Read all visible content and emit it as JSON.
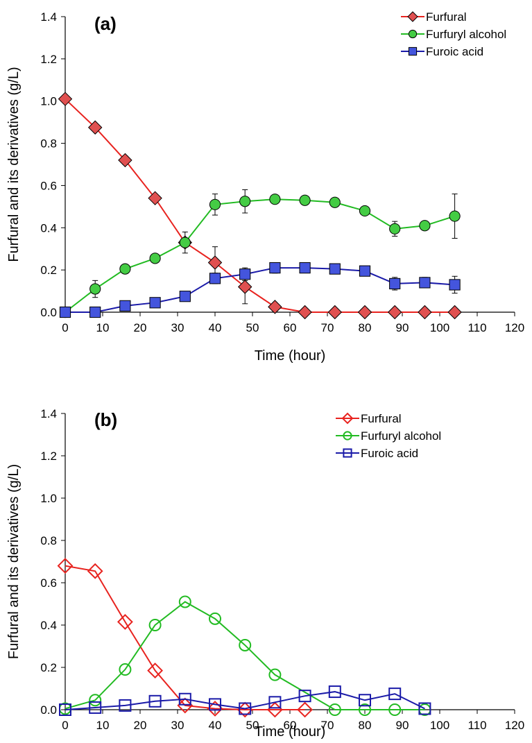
{
  "chart_data": [
    {
      "type": "line",
      "panel_label": "(a)",
      "xlabel": "Time (hour)",
      "ylabel": "Furfural and its derivatives (g/L)",
      "xlim": [
        0,
        120
      ],
      "ylim": [
        0,
        1.4
      ],
      "x_ticks": [
        "0",
        "10",
        "20",
        "30",
        "40",
        "50",
        "60",
        "70",
        "80",
        "90",
        "100",
        "110",
        "120"
      ],
      "y_ticks": [
        "0.0",
        "0.2",
        "0.4",
        "0.6",
        "0.8",
        "1.0",
        "1.2",
        "1.4"
      ],
      "grid": false,
      "legend_position": "top-right",
      "marker_fill": "filled",
      "series": [
        {
          "name": "Furfural",
          "color": "#e8231f",
          "marker_color": "#e05050",
          "marker": "diamond",
          "x": [
            0,
            8,
            16,
            24,
            32,
            40,
            48,
            56,
            64,
            72,
            80,
            88,
            96,
            104
          ],
          "y": [
            1.01,
            0.875,
            0.72,
            0.54,
            0.33,
            0.235,
            0.12,
            0.025,
            0,
            0,
            0,
            0,
            0,
            0
          ],
          "err": [
            0,
            0,
            0.02,
            0,
            0.05,
            0.075,
            0.08,
            0,
            0,
            0,
            0,
            0,
            0,
            0
          ]
        },
        {
          "name": "Furfuryl alcohol",
          "color": "#22bb22",
          "marker_color": "#44cc44",
          "marker": "circle",
          "x": [
            0,
            8,
            16,
            24,
            32,
            40,
            48,
            56,
            64,
            72,
            80,
            88,
            96,
            104
          ],
          "y": [
            0,
            0.11,
            0.205,
            0.255,
            0.33,
            0.51,
            0.525,
            0.535,
            0.53,
            0.52,
            0.48,
            0.395,
            0.41,
            0.455
          ],
          "err": [
            0,
            0.04,
            0,
            0.015,
            0.02,
            0.05,
            0.055,
            0,
            0,
            0.02,
            0,
            0.035,
            0.02,
            0.105
          ]
        },
        {
          "name": "Furoic acid",
          "color": "#1a1aa8",
          "marker_color": "#4455dd",
          "marker": "square",
          "x": [
            0,
            8,
            16,
            24,
            32,
            40,
            48,
            56,
            64,
            72,
            80,
            88,
            96,
            104
          ],
          "y": [
            0,
            0,
            0.03,
            0.045,
            0.075,
            0.16,
            0.18,
            0.21,
            0.21,
            0.205,
            0.195,
            0.135,
            0.14,
            0.13
          ],
          "err": [
            0,
            0,
            0.02,
            0.02,
            0,
            0.025,
            0.03,
            0.025,
            0.02,
            0.02,
            0.02,
            0.03,
            0.025,
            0.04
          ]
        }
      ]
    },
    {
      "type": "line",
      "panel_label": "(b)",
      "xlabel": "Time (hour)",
      "ylabel": "Furfural and its derivatives (g/L)",
      "xlim": [
        0,
        120
      ],
      "ylim": [
        0,
        1.4
      ],
      "x_ticks": [
        "0",
        "10",
        "20",
        "30",
        "40",
        "50",
        "60",
        "70",
        "80",
        "90",
        "100",
        "110",
        "120"
      ],
      "y_ticks": [
        "0.0",
        "0.2",
        "0.4",
        "0.6",
        "0.8",
        "1.0",
        "1.2",
        "1.4"
      ],
      "grid": false,
      "legend_position": "top-right",
      "marker_fill": "hollow",
      "series": [
        {
          "name": "Furfural",
          "color": "#e8231f",
          "marker": "diamond",
          "x": [
            0,
            8,
            16,
            24,
            32,
            40,
            48,
            56,
            64
          ],
          "y": [
            0.68,
            0.655,
            0.415,
            0.185,
            0.02,
            0.005,
            0,
            0,
            0
          ]
        },
        {
          "name": "Furfuryl alcohol",
          "color": "#22bb22",
          "marker": "circle",
          "x": [
            0,
            8,
            16,
            24,
            32,
            40,
            48,
            56,
            72,
            80,
            88,
            96
          ],
          "y": [
            0.005,
            0.045,
            0.19,
            0.4,
            0.51,
            0.43,
            0.305,
            0.165,
            0,
            0,
            0,
            0
          ]
        },
        {
          "name": "Furoic acid",
          "color": "#1a1aa8",
          "marker": "square",
          "x": [
            0,
            8,
            16,
            24,
            32,
            40,
            48,
            56,
            64,
            72,
            80,
            88,
            96
          ],
          "y": [
            0,
            0.01,
            0.02,
            0.04,
            0.05,
            0.025,
            0.005,
            0.035,
            0.065,
            0.085,
            0.045,
            0.075,
            0.005
          ]
        }
      ]
    }
  ]
}
